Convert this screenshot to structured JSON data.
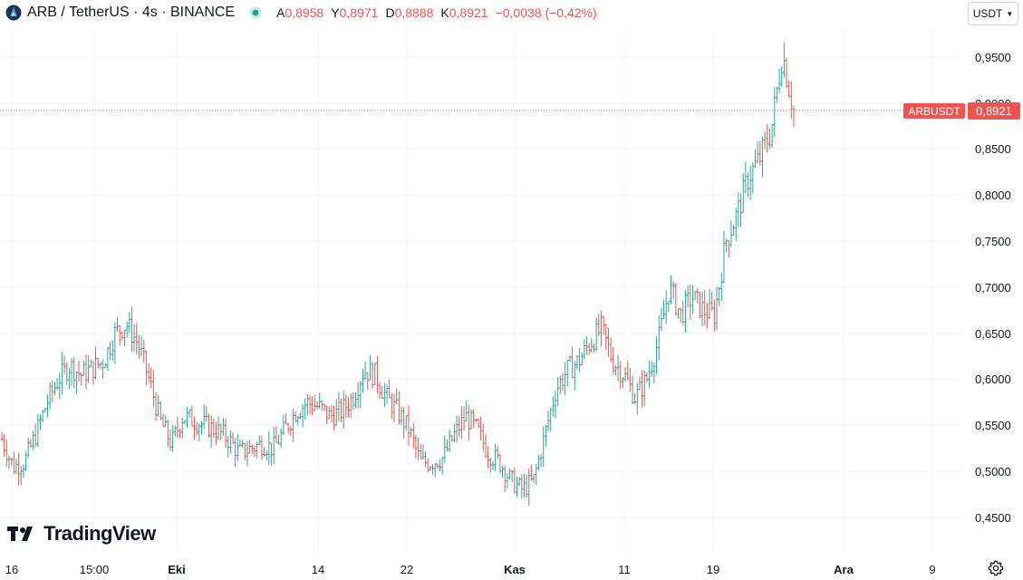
{
  "header": {
    "symbol_title": "ARB / TetherUS · 4s · BINANCE",
    "ohlc": [
      {
        "label": "A",
        "value": "0,8958"
      },
      {
        "label": "Y",
        "value": "0,8971"
      },
      {
        "label": "D",
        "value": "0,8888"
      },
      {
        "label": "K",
        "value": "0,8921"
      }
    ],
    "change": "−0,0038 (−0,42%)",
    "currency": "USDT"
  },
  "colors": {
    "up": "#26a69a",
    "down": "#ef5350",
    "grid": "#f0f3fa",
    "text": "#131722"
  },
  "watermark": {
    "text": "TradingView"
  },
  "chart_data": {
    "type": "ohlc",
    "symbol": "ARBUSDT",
    "ylim": [
      0.43,
      0.99
    ],
    "y_ticks": [
      "0,4500",
      "0,5000",
      "0,5500",
      "0,6000",
      "0,6500",
      "0,7000",
      "0,7500",
      "0,8000",
      "0,8500",
      "0,9000",
      "0,9500"
    ],
    "y_tick_values": [
      0.45,
      0.5,
      0.55,
      0.6,
      0.65,
      0.7,
      0.75,
      0.8,
      0.85,
      0.9,
      0.95
    ],
    "x_ticks": [
      {
        "label": "16",
        "bold": false
      },
      {
        "label": "15:00",
        "bold": false
      },
      {
        "label": "Eki",
        "bold": true
      },
      {
        "label": "14",
        "bold": false
      },
      {
        "label": "22",
        "bold": false
      },
      {
        "label": "Kas",
        "bold": true
      },
      {
        "label": "11",
        "bold": false
      },
      {
        "label": "19",
        "bold": false
      },
      {
        "label": "Ara",
        "bold": true
      },
      {
        "label": "9",
        "bold": false
      }
    ],
    "last_price": 0.8921,
    "last_price_label": "0,8921",
    "close_series": [
      0.535,
      0.505,
      0.51,
      0.54,
      0.575,
      0.6,
      0.615,
      0.605,
      0.612,
      0.62,
      0.65,
      0.66,
      0.64,
      0.6,
      0.555,
      0.53,
      0.56,
      0.555,
      0.55,
      0.545,
      0.535,
      0.52,
      0.525,
      0.53,
      0.525,
      0.545,
      0.565,
      0.575,
      0.57,
      0.56,
      0.565,
      0.58,
      0.61,
      0.605,
      0.58,
      0.565,
      0.545,
      0.51,
      0.51,
      0.515,
      0.54,
      0.56,
      0.545,
      0.52,
      0.51,
      0.49,
      0.48,
      0.49,
      0.54,
      0.59,
      0.61,
      0.62,
      0.64,
      0.655,
      0.62,
      0.605,
      0.58,
      0.6,
      0.64,
      0.7,
      0.67,
      0.69,
      0.675,
      0.67,
      0.75,
      0.78,
      0.82,
      0.84,
      0.87,
      0.955,
      0.89
    ]
  }
}
